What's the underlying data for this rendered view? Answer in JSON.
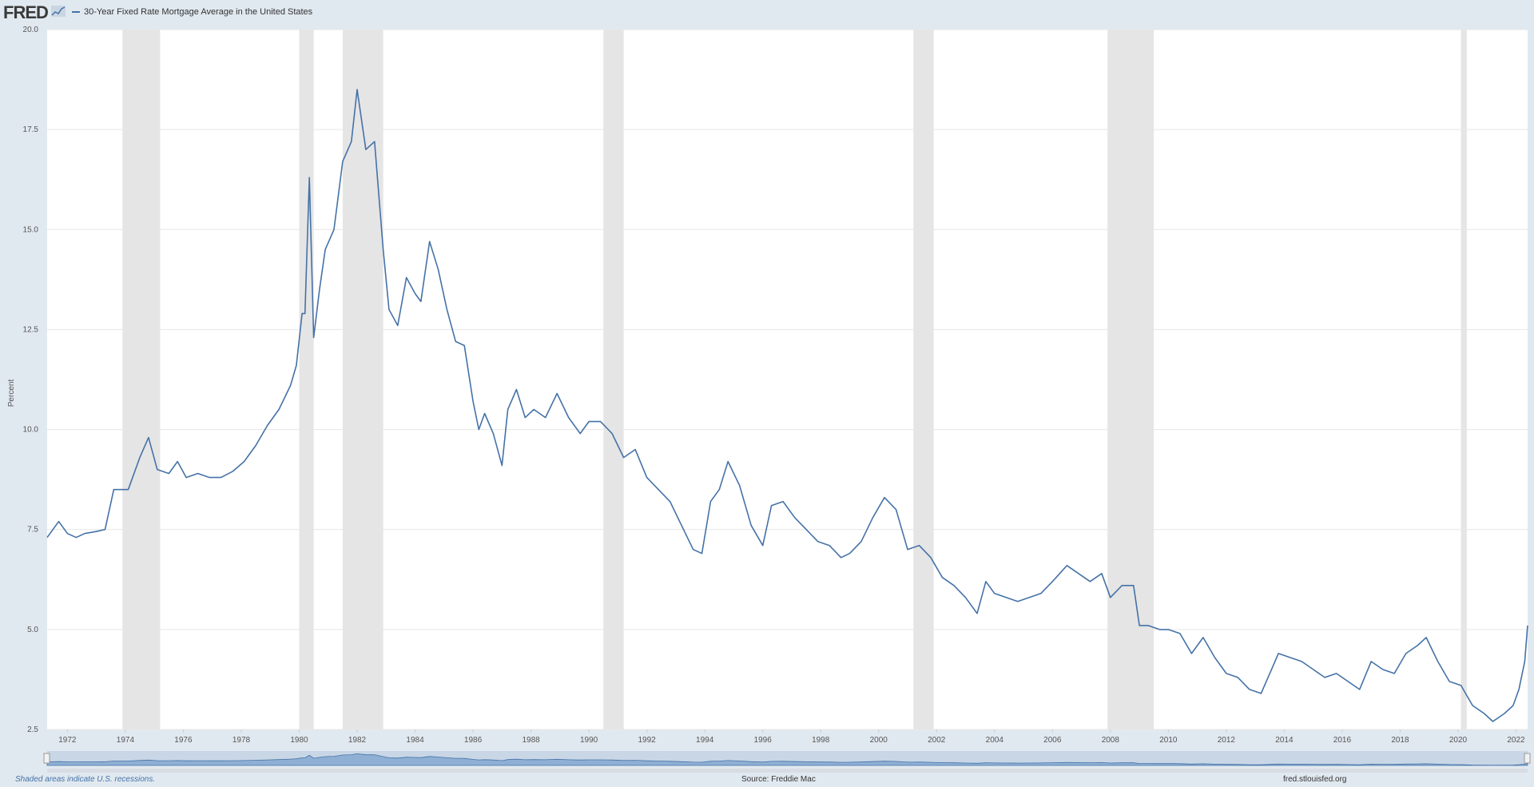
{
  "header": {
    "logo_text": "FRED",
    "legend_label": "30-Year Fixed Rate Mortgage Average in the United States"
  },
  "footer": {
    "note": "Shaded areas indicate U.S. recessions.",
    "source": "Source: Freddie Mac",
    "site": "fred.stlouisfed.org"
  },
  "colors": {
    "line": "#4572a7",
    "recession": "#e5e5e5",
    "background": "#e1e9f0",
    "plot": "#ffffff"
  },
  "chart_data": {
    "type": "line",
    "title": "",
    "xlabel": "",
    "ylabel": "Percent",
    "xlim": [
      1971.3,
      2022.4
    ],
    "ylim": [
      2.5,
      20.0
    ],
    "y_ticks": [
      "2.5",
      "5.0",
      "7.5",
      "10.0",
      "12.5",
      "15.0",
      "17.5",
      "20.0"
    ],
    "x_ticks": [
      "1972",
      "1974",
      "1976",
      "1978",
      "1980",
      "1982",
      "1984",
      "1986",
      "1988",
      "1990",
      "1992",
      "1994",
      "1996",
      "1998",
      "2000",
      "2002",
      "2004",
      "2006",
      "2008",
      "2010",
      "2012",
      "2014",
      "2016",
      "2018",
      "2020",
      "2022"
    ],
    "grid": true,
    "recessions": [
      [
        1973.9,
        1975.2
      ],
      [
        1980.0,
        1980.5
      ],
      [
        1981.5,
        1982.9
      ],
      [
        1990.5,
        1991.2
      ],
      [
        2001.2,
        2001.9
      ],
      [
        2007.9,
        2009.5
      ],
      [
        2020.1,
        2020.3
      ]
    ],
    "series": [
      {
        "name": "30-Year Fixed Rate Mortgage Average in the United States",
        "x": [
          1971.3,
          1971.7,
          1972.0,
          1972.3,
          1972.6,
          1973.0,
          1973.3,
          1973.6,
          1973.9,
          1974.1,
          1974.5,
          1974.8,
          1975.1,
          1975.5,
          1975.8,
          1976.1,
          1976.5,
          1976.9,
          1977.3,
          1977.7,
          1978.1,
          1978.5,
          1978.9,
          1979.3,
          1979.7,
          1979.9,
          1980.1,
          1980.2,
          1980.35,
          1980.5,
          1980.7,
          1980.9,
          1981.2,
          1981.5,
          1981.8,
          1982.0,
          1982.3,
          1982.6,
          1982.9,
          1983.1,
          1983.4,
          1983.7,
          1984.0,
          1984.2,
          1984.5,
          1984.8,
          1985.1,
          1985.4,
          1985.7,
          1986.0,
          1986.2,
          1986.4,
          1986.7,
          1987.0,
          1987.2,
          1987.5,
          1987.8,
          1988.1,
          1988.5,
          1988.9,
          1989.3,
          1989.7,
          1990.0,
          1990.4,
          1990.8,
          1991.2,
          1991.6,
          1992.0,
          1992.4,
          1992.8,
          1993.2,
          1993.6,
          1993.9,
          1994.2,
          1994.5,
          1994.8,
          1995.2,
          1995.6,
          1996.0,
          1996.3,
          1996.7,
          1997.1,
          1997.5,
          1997.9,
          1998.3,
          1998.7,
          1999.0,
          1999.4,
          1999.8,
          2000.2,
          2000.6,
          2001.0,
          2001.4,
          2001.8,
          2002.2,
          2002.6,
          2003.0,
          2003.4,
          2003.7,
          2004.0,
          2004.4,
          2004.8,
          2005.2,
          2005.6,
          2006.0,
          2006.5,
          2006.9,
          2007.3,
          2007.7,
          2008.0,
          2008.4,
          2008.8,
          2009.0,
          2009.3,
          2009.7,
          2010.0,
          2010.4,
          2010.8,
          2011.2,
          2011.6,
          2012.0,
          2012.4,
          2012.8,
          2013.2,
          2013.5,
          2013.8,
          2014.2,
          2014.6,
          2015.0,
          2015.4,
          2015.8,
          2016.2,
          2016.6,
          2017.0,
          2017.4,
          2017.8,
          2018.2,
          2018.6,
          2018.9,
          2019.3,
          2019.7,
          2020.1,
          2020.5,
          2020.9,
          2021.2,
          2021.6,
          2021.9,
          2022.1,
          2022.3,
          2022.4
        ],
        "values": [
          7.3,
          7.7,
          7.4,
          7.3,
          7.4,
          7.45,
          7.5,
          8.5,
          8.5,
          8.5,
          9.3,
          9.8,
          9.0,
          8.9,
          9.2,
          8.8,
          8.9,
          8.8,
          8.8,
          8.95,
          9.2,
          9.6,
          10.1,
          10.5,
          11.1,
          11.6,
          12.9,
          12.9,
          16.3,
          12.3,
          13.5,
          14.5,
          15.0,
          16.7,
          17.2,
          18.5,
          17.0,
          17.2,
          14.5,
          13.0,
          12.6,
          13.8,
          13.4,
          13.2,
          14.7,
          14.0,
          13.0,
          12.2,
          12.1,
          10.7,
          10.0,
          10.4,
          9.9,
          9.1,
          10.5,
          11.0,
          10.3,
          10.5,
          10.3,
          10.9,
          10.3,
          9.9,
          10.2,
          10.2,
          9.9,
          9.3,
          9.5,
          8.8,
          8.5,
          8.2,
          7.6,
          7.0,
          6.9,
          8.2,
          8.5,
          9.2,
          8.6,
          7.6,
          7.1,
          8.1,
          8.2,
          7.8,
          7.5,
          7.2,
          7.1,
          6.8,
          6.9,
          7.2,
          7.8,
          8.3,
          8.0,
          7.0,
          7.1,
          6.8,
          6.3,
          6.1,
          5.8,
          5.4,
          6.2,
          5.9,
          5.8,
          5.7,
          5.8,
          5.9,
          6.2,
          6.6,
          6.4,
          6.2,
          6.4,
          5.8,
          6.1,
          6.1,
          5.1,
          5.1,
          5.0,
          5.0,
          4.9,
          4.4,
          4.8,
          4.3,
          3.9,
          3.8,
          3.5,
          3.4,
          3.9,
          4.4,
          4.3,
          4.2,
          4.0,
          3.8,
          3.9,
          3.7,
          3.5,
          4.2,
          4.0,
          3.9,
          4.4,
          4.6,
          4.8,
          4.2,
          3.7,
          3.6,
          3.1,
          2.9,
          2.7,
          2.9,
          3.1,
          3.5,
          4.2,
          5.1
        ]
      }
    ]
  }
}
